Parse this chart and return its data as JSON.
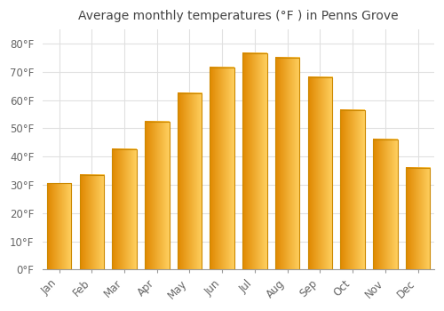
{
  "title": "Average monthly temperatures (°F ) in Penns Grove",
  "months": [
    "Jan",
    "Feb",
    "Mar",
    "Apr",
    "May",
    "Jun",
    "Jul",
    "Aug",
    "Sep",
    "Oct",
    "Nov",
    "Dec"
  ],
  "values": [
    30.5,
    33.5,
    42.5,
    52.5,
    62.5,
    71.5,
    76.5,
    75.0,
    68.0,
    56.5,
    46.0,
    36.0
  ],
  "bar_color_left": "#FFA500",
  "bar_color_right": "#FFD060",
  "bar_edge_color": "#CC8800",
  "ylim": [
    0,
    85
  ],
  "yticks": [
    0,
    10,
    20,
    30,
    40,
    50,
    60,
    70,
    80
  ],
  "ytick_labels": [
    "0°F",
    "10°F",
    "20°F",
    "30°F",
    "40°F",
    "50°F",
    "60°F",
    "70°F",
    "80°F"
  ],
  "background_color": "#ffffff",
  "plot_bg_color": "#ffffff",
  "grid_color": "#e0e0e0",
  "title_fontsize": 10,
  "tick_fontsize": 8.5,
  "bar_width": 0.75
}
